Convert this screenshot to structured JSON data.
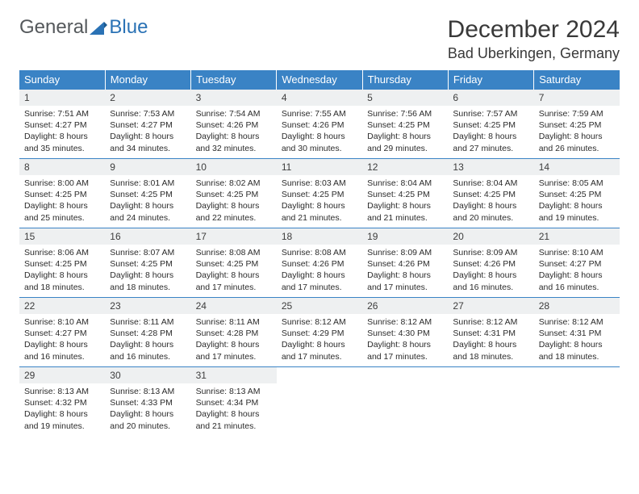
{
  "logo": {
    "word1": "General",
    "word2": "Blue"
  },
  "title": "December 2024",
  "location": "Bad Uberkingen, Germany",
  "colors": {
    "header_bg": "#3a83c5",
    "header_text": "#ffffff",
    "daynum_bg": "#eef0f1",
    "rule": "#3a83c5",
    "body_text": "#2b2b2b",
    "logo_gray": "#55595c",
    "logo_blue": "#2a72b5"
  },
  "weekdays": [
    "Sunday",
    "Monday",
    "Tuesday",
    "Wednesday",
    "Thursday",
    "Friday",
    "Saturday"
  ],
  "days": [
    {
      "n": "1",
      "sr": "Sunrise: 7:51 AM",
      "ss": "Sunset: 4:27 PM",
      "dl1": "Daylight: 8 hours",
      "dl2": "and 35 minutes."
    },
    {
      "n": "2",
      "sr": "Sunrise: 7:53 AM",
      "ss": "Sunset: 4:27 PM",
      "dl1": "Daylight: 8 hours",
      "dl2": "and 34 minutes."
    },
    {
      "n": "3",
      "sr": "Sunrise: 7:54 AM",
      "ss": "Sunset: 4:26 PM",
      "dl1": "Daylight: 8 hours",
      "dl2": "and 32 minutes."
    },
    {
      "n": "4",
      "sr": "Sunrise: 7:55 AM",
      "ss": "Sunset: 4:26 PM",
      "dl1": "Daylight: 8 hours",
      "dl2": "and 30 minutes."
    },
    {
      "n": "5",
      "sr": "Sunrise: 7:56 AM",
      "ss": "Sunset: 4:25 PM",
      "dl1": "Daylight: 8 hours",
      "dl2": "and 29 minutes."
    },
    {
      "n": "6",
      "sr": "Sunrise: 7:57 AM",
      "ss": "Sunset: 4:25 PM",
      "dl1": "Daylight: 8 hours",
      "dl2": "and 27 minutes."
    },
    {
      "n": "7",
      "sr": "Sunrise: 7:59 AM",
      "ss": "Sunset: 4:25 PM",
      "dl1": "Daylight: 8 hours",
      "dl2": "and 26 minutes."
    },
    {
      "n": "8",
      "sr": "Sunrise: 8:00 AM",
      "ss": "Sunset: 4:25 PM",
      "dl1": "Daylight: 8 hours",
      "dl2": "and 25 minutes."
    },
    {
      "n": "9",
      "sr": "Sunrise: 8:01 AM",
      "ss": "Sunset: 4:25 PM",
      "dl1": "Daylight: 8 hours",
      "dl2": "and 24 minutes."
    },
    {
      "n": "10",
      "sr": "Sunrise: 8:02 AM",
      "ss": "Sunset: 4:25 PM",
      "dl1": "Daylight: 8 hours",
      "dl2": "and 22 minutes."
    },
    {
      "n": "11",
      "sr": "Sunrise: 8:03 AM",
      "ss": "Sunset: 4:25 PM",
      "dl1": "Daylight: 8 hours",
      "dl2": "and 21 minutes."
    },
    {
      "n": "12",
      "sr": "Sunrise: 8:04 AM",
      "ss": "Sunset: 4:25 PM",
      "dl1": "Daylight: 8 hours",
      "dl2": "and 21 minutes."
    },
    {
      "n": "13",
      "sr": "Sunrise: 8:04 AM",
      "ss": "Sunset: 4:25 PM",
      "dl1": "Daylight: 8 hours",
      "dl2": "and 20 minutes."
    },
    {
      "n": "14",
      "sr": "Sunrise: 8:05 AM",
      "ss": "Sunset: 4:25 PM",
      "dl1": "Daylight: 8 hours",
      "dl2": "and 19 minutes."
    },
    {
      "n": "15",
      "sr": "Sunrise: 8:06 AM",
      "ss": "Sunset: 4:25 PM",
      "dl1": "Daylight: 8 hours",
      "dl2": "and 18 minutes."
    },
    {
      "n": "16",
      "sr": "Sunrise: 8:07 AM",
      "ss": "Sunset: 4:25 PM",
      "dl1": "Daylight: 8 hours",
      "dl2": "and 18 minutes."
    },
    {
      "n": "17",
      "sr": "Sunrise: 8:08 AM",
      "ss": "Sunset: 4:25 PM",
      "dl1": "Daylight: 8 hours",
      "dl2": "and 17 minutes."
    },
    {
      "n": "18",
      "sr": "Sunrise: 8:08 AM",
      "ss": "Sunset: 4:26 PM",
      "dl1": "Daylight: 8 hours",
      "dl2": "and 17 minutes."
    },
    {
      "n": "19",
      "sr": "Sunrise: 8:09 AM",
      "ss": "Sunset: 4:26 PM",
      "dl1": "Daylight: 8 hours",
      "dl2": "and 17 minutes."
    },
    {
      "n": "20",
      "sr": "Sunrise: 8:09 AM",
      "ss": "Sunset: 4:26 PM",
      "dl1": "Daylight: 8 hours",
      "dl2": "and 16 minutes."
    },
    {
      "n": "21",
      "sr": "Sunrise: 8:10 AM",
      "ss": "Sunset: 4:27 PM",
      "dl1": "Daylight: 8 hours",
      "dl2": "and 16 minutes."
    },
    {
      "n": "22",
      "sr": "Sunrise: 8:10 AM",
      "ss": "Sunset: 4:27 PM",
      "dl1": "Daylight: 8 hours",
      "dl2": "and 16 minutes."
    },
    {
      "n": "23",
      "sr": "Sunrise: 8:11 AM",
      "ss": "Sunset: 4:28 PM",
      "dl1": "Daylight: 8 hours",
      "dl2": "and 16 minutes."
    },
    {
      "n": "24",
      "sr": "Sunrise: 8:11 AM",
      "ss": "Sunset: 4:28 PM",
      "dl1": "Daylight: 8 hours",
      "dl2": "and 17 minutes."
    },
    {
      "n": "25",
      "sr": "Sunrise: 8:12 AM",
      "ss": "Sunset: 4:29 PM",
      "dl1": "Daylight: 8 hours",
      "dl2": "and 17 minutes."
    },
    {
      "n": "26",
      "sr": "Sunrise: 8:12 AM",
      "ss": "Sunset: 4:30 PM",
      "dl1": "Daylight: 8 hours",
      "dl2": "and 17 minutes."
    },
    {
      "n": "27",
      "sr": "Sunrise: 8:12 AM",
      "ss": "Sunset: 4:31 PM",
      "dl1": "Daylight: 8 hours",
      "dl2": "and 18 minutes."
    },
    {
      "n": "28",
      "sr": "Sunrise: 8:12 AM",
      "ss": "Sunset: 4:31 PM",
      "dl1": "Daylight: 8 hours",
      "dl2": "and 18 minutes."
    },
    {
      "n": "29",
      "sr": "Sunrise: 8:13 AM",
      "ss": "Sunset: 4:32 PM",
      "dl1": "Daylight: 8 hours",
      "dl2": "and 19 minutes."
    },
    {
      "n": "30",
      "sr": "Sunrise: 8:13 AM",
      "ss": "Sunset: 4:33 PM",
      "dl1": "Daylight: 8 hours",
      "dl2": "and 20 minutes."
    },
    {
      "n": "31",
      "sr": "Sunrise: 8:13 AM",
      "ss": "Sunset: 4:34 PM",
      "dl1": "Daylight: 8 hours",
      "dl2": "and 21 minutes."
    }
  ]
}
